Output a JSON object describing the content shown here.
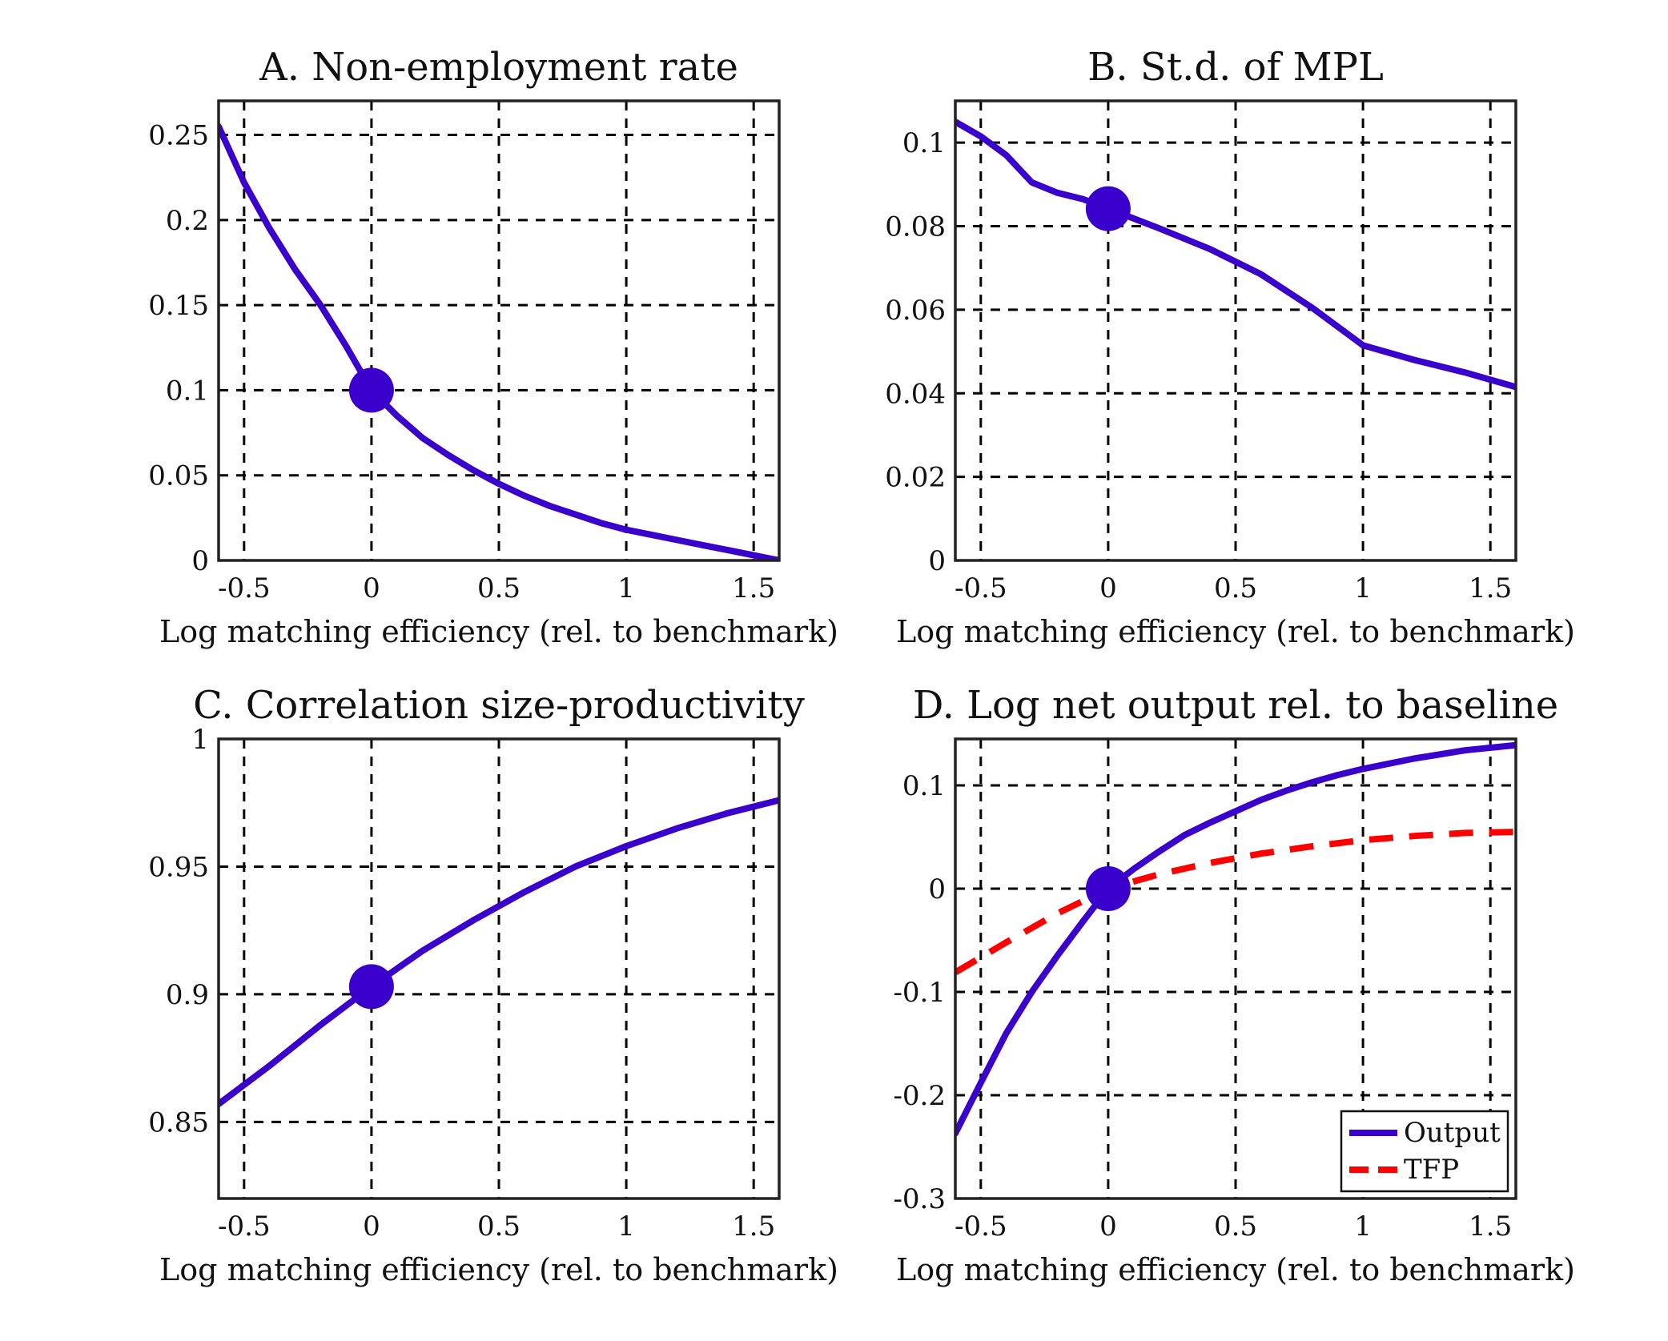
{
  "chart_data": [
    {
      "panel": "A",
      "type": "line",
      "title": "A. Non-employment rate",
      "xlabel": "Log matching efficiency (rel. to benchmark)",
      "ylabel": "",
      "xlim": [
        -0.6,
        1.6
      ],
      "ylim": [
        0,
        0.27
      ],
      "xticks": [
        -0.5,
        0,
        0.5,
        1,
        1.5
      ],
      "xtick_labels": [
        "-0.5",
        "0",
        "0.5",
        "1",
        "1.5"
      ],
      "yticks": [
        0,
        0.05,
        0.1,
        0.15,
        0.2,
        0.25
      ],
      "ytick_labels": [
        "0",
        "0.05",
        "0.1",
        "0.15",
        "0.2",
        "0.25"
      ],
      "grid": true,
      "series": [
        {
          "color": "#3a00cc",
          "style": "solid",
          "x": [
            -0.6,
            -0.5,
            -0.4,
            -0.3,
            -0.2,
            -0.1,
            0,
            0.1,
            0.2,
            0.3,
            0.4,
            0.5,
            0.6,
            0.7,
            0.8,
            0.9,
            1.0,
            1.1,
            1.2,
            1.3,
            1.4,
            1.5,
            1.6
          ],
          "y": [
            0.255,
            0.222,
            0.195,
            0.171,
            0.15,
            0.126,
            0.1,
            0.085,
            0.072,
            0.062,
            0.053,
            0.045,
            0.038,
            0.032,
            0.027,
            0.022,
            0.018,
            0.015,
            0.012,
            0.009,
            0.006,
            0.003,
            0.0
          ]
        }
      ],
      "marker": {
        "x": 0,
        "y": 0.1,
        "color": "#3a00cc"
      }
    },
    {
      "panel": "B",
      "type": "line",
      "title": "B. St.d. of MPL",
      "xlabel": "Log matching efficiency (rel. to benchmark)",
      "ylabel": "",
      "xlim": [
        -0.6,
        1.6
      ],
      "ylim": [
        0,
        0.11
      ],
      "xticks": [
        -0.5,
        0,
        0.5,
        1,
        1.5
      ],
      "xtick_labels": [
        "-0.5",
        "0",
        "0.5",
        "1",
        "1.5"
      ],
      "yticks": [
        0,
        0.02,
        0.04,
        0.06,
        0.08,
        0.1
      ],
      "ytick_labels": [
        "0",
        "0.02",
        "0.04",
        "0.06",
        "0.08",
        "0.1"
      ],
      "grid": true,
      "series": [
        {
          "color": "#3a00cc",
          "style": "solid",
          "x": [
            -0.6,
            -0.5,
            -0.4,
            -0.3,
            -0.2,
            -0.1,
            0,
            0.2,
            0.4,
            0.6,
            0.8,
            1.0,
            1.2,
            1.4,
            1.6
          ],
          "y": [
            0.105,
            0.1015,
            0.097,
            0.0905,
            0.088,
            0.0865,
            0.0842,
            0.0795,
            0.0745,
            0.0685,
            0.0605,
            0.0515,
            0.048,
            0.045,
            0.0415
          ]
        }
      ],
      "marker": {
        "x": 0,
        "y": 0.0842,
        "color": "#3a00cc"
      }
    },
    {
      "panel": "C",
      "type": "line",
      "title": "C. Correlation size-productivity",
      "xlabel": "Log matching efficiency (rel. to benchmark)",
      "ylabel": "",
      "xlim": [
        -0.6,
        1.6
      ],
      "ylim": [
        0.82,
        1.0
      ],
      "xticks": [
        -0.5,
        0,
        0.5,
        1,
        1.5
      ],
      "xtick_labels": [
        "-0.5",
        "0",
        "0.5",
        "1",
        "1.5"
      ],
      "yticks": [
        0.85,
        0.9,
        0.95,
        1.0
      ],
      "ytick_labels": [
        "0.85",
        "0.9",
        "0.95",
        "1"
      ],
      "grid": true,
      "series": [
        {
          "color": "#3a00cc",
          "style": "solid",
          "x": [
            -0.6,
            -0.4,
            -0.2,
            0,
            0.2,
            0.4,
            0.6,
            0.8,
            1.0,
            1.2,
            1.4,
            1.6
          ],
          "y": [
            0.857,
            0.872,
            0.888,
            0.903,
            0.917,
            0.929,
            0.94,
            0.95,
            0.958,
            0.965,
            0.971,
            0.976
          ]
        }
      ],
      "marker": {
        "x": 0,
        "y": 0.903,
        "color": "#3a00cc"
      }
    },
    {
      "panel": "D",
      "type": "line",
      "title": "D. Log net output rel. to baseline",
      "xlabel": "Log matching efficiency (rel. to benchmark)",
      "ylabel": "",
      "xlim": [
        -0.6,
        1.6
      ],
      "ylim": [
        -0.3,
        0.145
      ],
      "xticks": [
        -0.5,
        0,
        0.5,
        1,
        1.5
      ],
      "xtick_labels": [
        "-0.5",
        "0",
        "0.5",
        "1",
        "1.5"
      ],
      "yticks": [
        -0.3,
        -0.2,
        -0.1,
        0,
        0.1
      ],
      "ytick_labels": [
        "-0.3",
        "-0.2",
        "-0.1",
        "0",
        "0.1"
      ],
      "grid": true,
      "legend": "bottom-right",
      "series": [
        {
          "name": "Output",
          "color": "#3a00cc",
          "style": "solid",
          "x": [
            -0.6,
            -0.5,
            -0.4,
            -0.3,
            -0.2,
            -0.1,
            0,
            0.1,
            0.2,
            0.3,
            0.4,
            0.5,
            0.6,
            0.7,
            0.8,
            0.9,
            1.0,
            1.2,
            1.4,
            1.6
          ],
          "y": [
            -0.237,
            -0.188,
            -0.14,
            -0.1,
            -0.065,
            -0.032,
            0.0,
            0.019,
            0.036,
            0.052,
            0.064,
            0.075,
            0.086,
            0.095,
            0.103,
            0.11,
            0.116,
            0.126,
            0.134,
            0.139
          ]
        },
        {
          "name": "TFP",
          "color": "#ff0000",
          "style": "dashed",
          "x": [
            -0.6,
            -0.4,
            -0.2,
            0,
            0.2,
            0.4,
            0.6,
            0.8,
            1.0,
            1.2,
            1.4,
            1.6
          ],
          "y": [
            -0.081,
            -0.052,
            -0.024,
            0.0,
            0.014,
            0.025,
            0.034,
            0.041,
            0.047,
            0.051,
            0.054,
            0.055
          ]
        }
      ],
      "marker": {
        "x": 0,
        "y": 0.0,
        "color": "#3a00cc"
      }
    }
  ]
}
